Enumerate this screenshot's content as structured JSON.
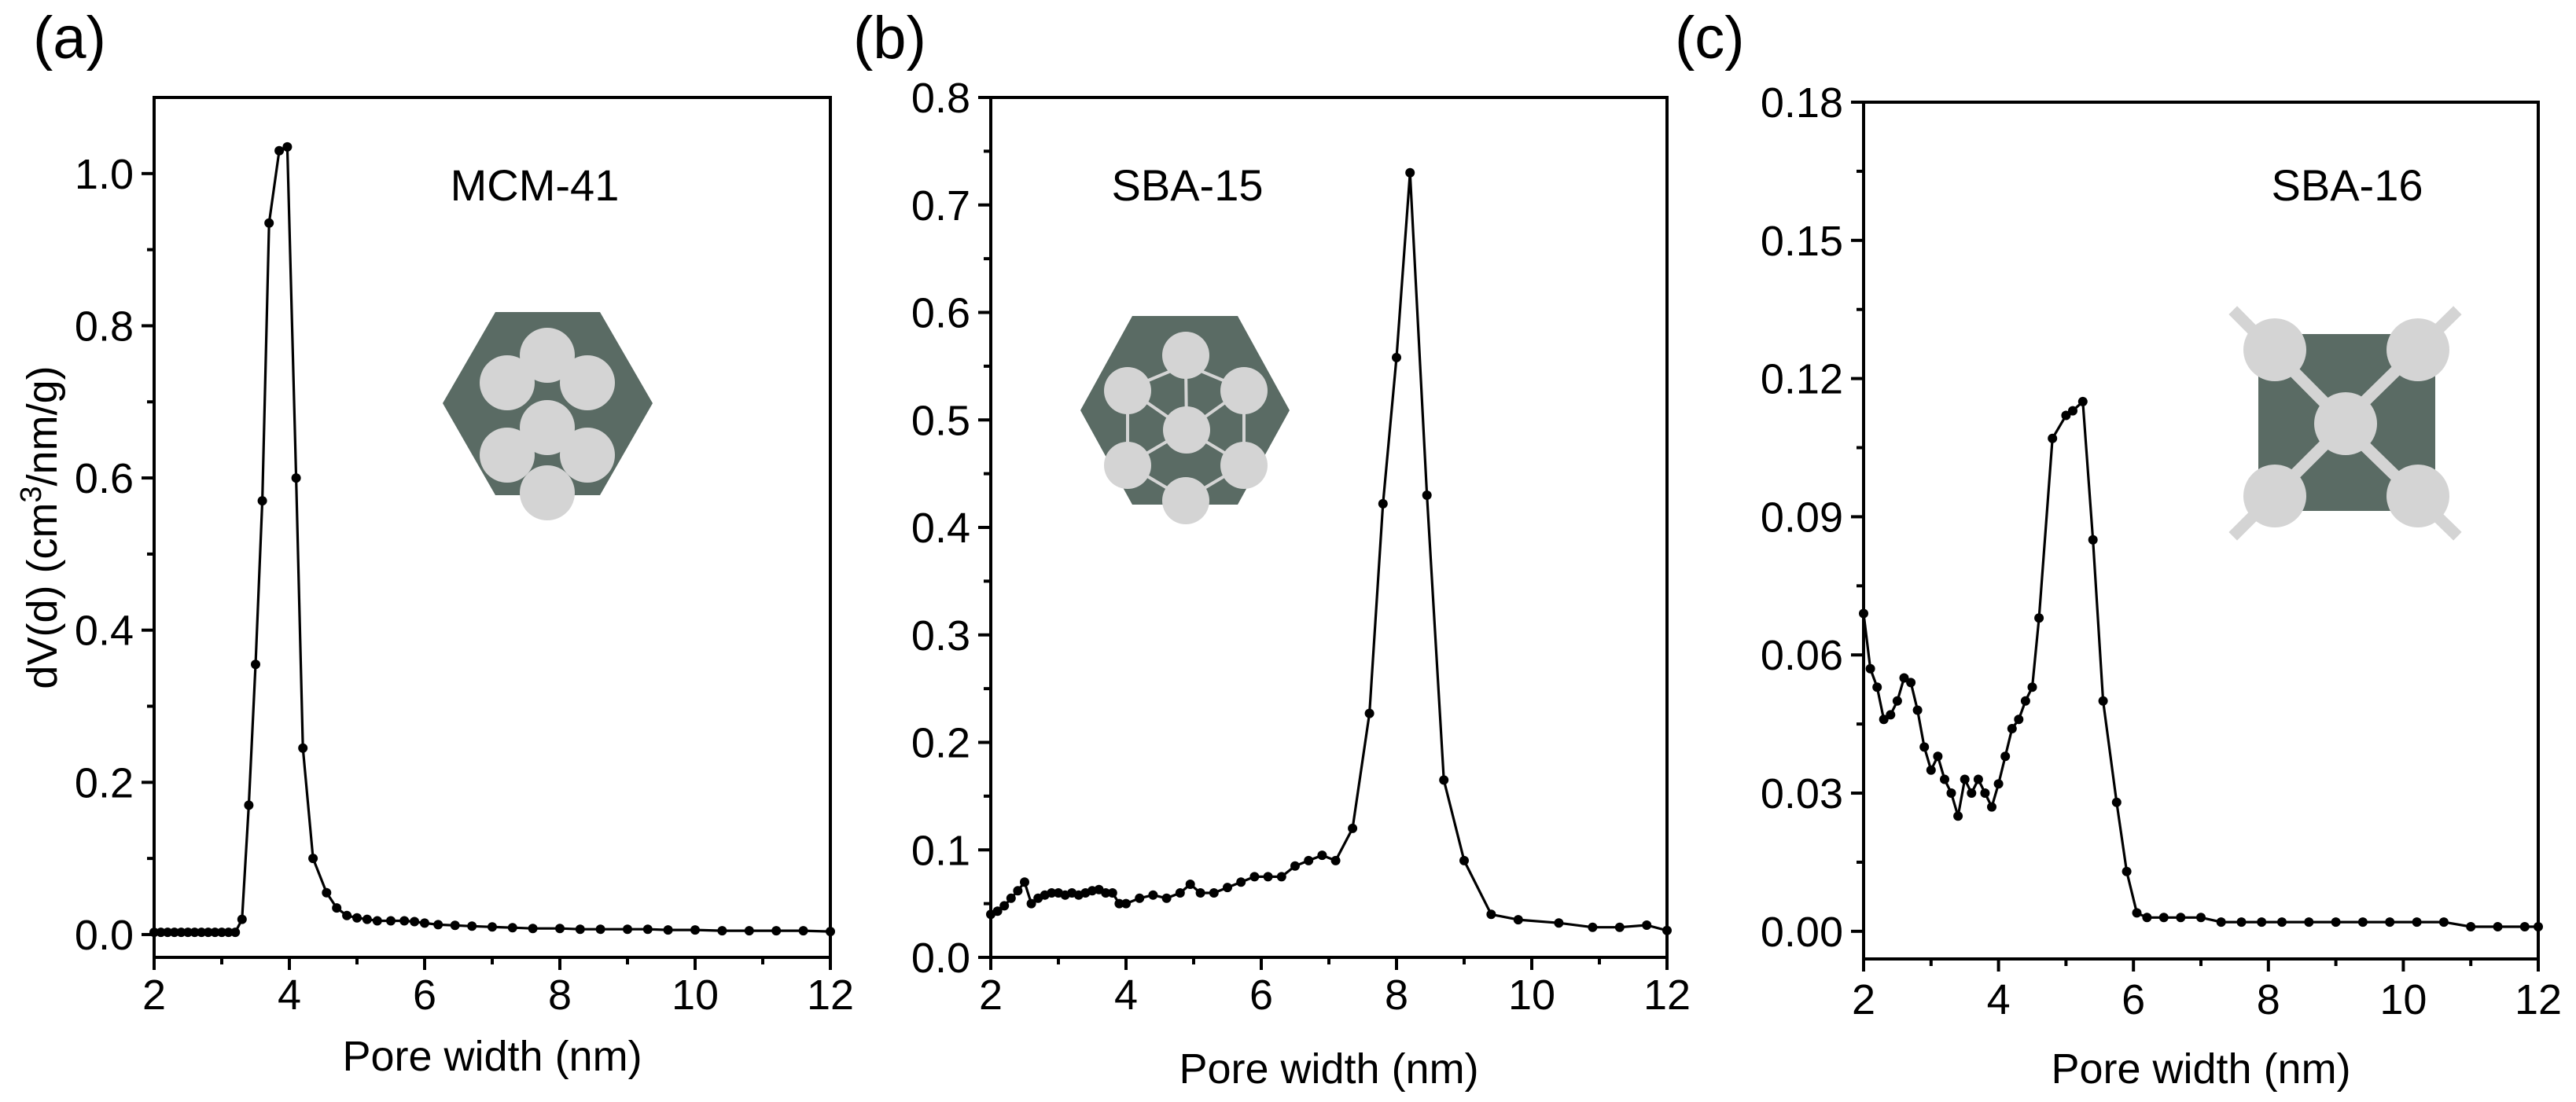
{
  "colors": {
    "line": "#000000",
    "inset_dark": "#5a6b64",
    "inset_light": "#d4d4d4"
  },
  "chart_data": [
    {
      "type": "line",
      "panel_label": "(a)",
      "annotation": "MCM-41",
      "inset_icon": "hexagonal-pore-array-icon",
      "xlabel": "Pore width (nm)",
      "ylabel": "dV(d) (cm3/nm/g)",
      "xlim": [
        2,
        12
      ],
      "ylim": [
        -0.03,
        1.1
      ],
      "x_ticks": [
        2,
        4,
        6,
        8,
        10,
        12
      ],
      "y_ticks": [
        0.0,
        0.2,
        0.4,
        0.6,
        0.8,
        1.0
      ],
      "y_tick_labels": [
        "0.0",
        "0.2",
        "0.4",
        "0.6",
        "0.8",
        "1.0"
      ],
      "series": [
        {
          "x": [
            2.0,
            2.1,
            2.2,
            2.3,
            2.4,
            2.5,
            2.6,
            2.7,
            2.8,
            2.9,
            3.0,
            3.1,
            3.2,
            3.3,
            3.4,
            3.5,
            3.6,
            3.7,
            3.85,
            3.97,
            4.1,
            4.2,
            4.35,
            4.55,
            4.7,
            4.85,
            5.0,
            5.15,
            5.3,
            5.5,
            5.7,
            5.85,
            6.0,
            6.2,
            6.45,
            6.7,
            7.0,
            7.3,
            7.6,
            8.0,
            8.3,
            8.6,
            9.0,
            9.3,
            9.6,
            10.0,
            10.4,
            10.8,
            11.2,
            11.6,
            12.0
          ],
          "y": [
            0.003,
            0.003,
            0.003,
            0.003,
            0.003,
            0.003,
            0.003,
            0.003,
            0.003,
            0.003,
            0.003,
            0.003,
            0.003,
            0.02,
            0.17,
            0.355,
            0.57,
            0.935,
            1.03,
            1.035,
            0.6,
            0.245,
            0.1,
            0.055,
            0.035,
            0.025,
            0.022,
            0.02,
            0.018,
            0.018,
            0.018,
            0.017,
            0.015,
            0.013,
            0.012,
            0.011,
            0.01,
            0.009,
            0.008,
            0.008,
            0.007,
            0.007,
            0.007,
            0.007,
            0.006,
            0.006,
            0.005,
            0.005,
            0.005,
            0.005,
            0.004
          ]
        }
      ]
    },
    {
      "type": "line",
      "panel_label": "(b)",
      "annotation": "SBA-15",
      "inset_icon": "sba15-pore-structure-icon",
      "xlabel": "Pore width (nm)",
      "xlim": [
        2,
        12
      ],
      "ylim": [
        0.0,
        0.8
      ],
      "x_ticks": [
        2,
        4,
        6,
        8,
        10,
        12
      ],
      "y_ticks": [
        0.0,
        0.1,
        0.2,
        0.3,
        0.4,
        0.5,
        0.6,
        0.7,
        0.8
      ],
      "y_tick_labels": [
        "0.0",
        "0.1",
        "0.2",
        "0.3",
        "0.4",
        "0.5",
        "0.6",
        "0.7",
        "0.8"
      ],
      "series": [
        {
          "x": [
            2.0,
            2.1,
            2.2,
            2.3,
            2.4,
            2.5,
            2.6,
            2.7,
            2.8,
            2.9,
            3.0,
            3.1,
            3.2,
            3.3,
            3.4,
            3.5,
            3.6,
            3.7,
            3.8,
            3.9,
            4.0,
            4.2,
            4.4,
            4.6,
            4.8,
            4.95,
            5.1,
            5.3,
            5.5,
            5.7,
            5.9,
            6.1,
            6.3,
            6.5,
            6.7,
            6.9,
            7.1,
            7.35,
            7.6,
            7.8,
            8.0,
            8.2,
            8.45,
            8.7,
            9.0,
            9.4,
            9.8,
            10.4,
            10.9,
            11.3,
            11.7,
            12.0
          ],
          "y": [
            0.04,
            0.043,
            0.048,
            0.055,
            0.062,
            0.07,
            0.05,
            0.055,
            0.058,
            0.06,
            0.06,
            0.058,
            0.06,
            0.058,
            0.06,
            0.062,
            0.063,
            0.06,
            0.06,
            0.05,
            0.05,
            0.055,
            0.058,
            0.055,
            0.06,
            0.068,
            0.06,
            0.06,
            0.065,
            0.07,
            0.075,
            0.075,
            0.075,
            0.085,
            0.09,
            0.095,
            0.09,
            0.12,
            0.227,
            0.422,
            0.558,
            0.73,
            0.43,
            0.165,
            0.09,
            0.04,
            0.035,
            0.032,
            0.028,
            0.028,
            0.03,
            0.025
          ]
        }
      ]
    },
    {
      "type": "line",
      "panel_label": "(c)",
      "annotation": "SBA-16",
      "inset_icon": "sba16-cubic-cage-icon",
      "xlabel": "Pore width (nm)",
      "xlim": [
        2,
        12
      ],
      "ylim": [
        -0.006,
        0.18
      ],
      "x_ticks": [
        2,
        4,
        6,
        8,
        10,
        12
      ],
      "y_ticks": [
        0.0,
        0.03,
        0.06,
        0.09,
        0.12,
        0.15,
        0.18
      ],
      "y_tick_labels": [
        "0.00",
        "0.03",
        "0.06",
        "0.09",
        "0.12",
        "0.15",
        "0.18"
      ],
      "series": [
        {
          "x": [
            2.0,
            2.1,
            2.2,
            2.3,
            2.4,
            2.5,
            2.6,
            2.7,
            2.8,
            2.9,
            3.0,
            3.1,
            3.2,
            3.3,
            3.4,
            3.5,
            3.6,
            3.7,
            3.8,
            3.9,
            4.0,
            4.1,
            4.2,
            4.3,
            4.4,
            4.5,
            4.6,
            4.8,
            5.0,
            5.1,
            5.25,
            5.4,
            5.55,
            5.75,
            5.9,
            6.05,
            6.2,
            6.45,
            6.7,
            7.0,
            7.3,
            7.6,
            7.9,
            8.2,
            8.6,
            9.0,
            9.4,
            9.8,
            10.2,
            10.6,
            11.0,
            11.4,
            11.8,
            12.0
          ],
          "y": [
            0.069,
            0.057,
            0.053,
            0.046,
            0.047,
            0.05,
            0.055,
            0.054,
            0.048,
            0.04,
            0.035,
            0.038,
            0.033,
            0.03,
            0.025,
            0.033,
            0.03,
            0.033,
            0.03,
            0.027,
            0.032,
            0.038,
            0.044,
            0.046,
            0.05,
            0.053,
            0.068,
            0.107,
            0.112,
            0.113,
            0.115,
            0.085,
            0.05,
            0.028,
            0.013,
            0.004,
            0.003,
            0.003,
            0.003,
            0.003,
            0.002,
            0.002,
            0.002,
            0.002,
            0.002,
            0.002,
            0.002,
            0.002,
            0.002,
            0.002,
            0.001,
            0.001,
            0.001,
            0.001
          ]
        }
      ]
    }
  ]
}
